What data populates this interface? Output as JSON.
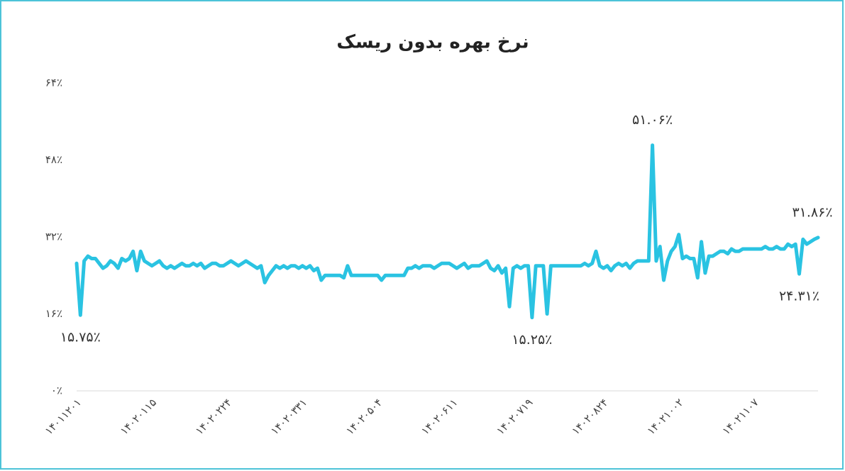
{
  "chart_data": {
    "type": "line",
    "title": "نرخ بهره بدون ریسک",
    "categories": [
      "۱۴۰۱۱۲۰۱",
      null,
      null,
      null,
      null,
      null,
      null,
      null,
      null,
      null,
      null,
      null,
      null,
      null,
      null,
      null,
      null,
      null,
      null,
      null,
      "۱۴۰۲۰۱۱۵",
      null,
      null,
      null,
      null,
      null,
      null,
      null,
      null,
      null,
      null,
      null,
      null,
      null,
      null,
      null,
      null,
      null,
      null,
      null,
      "۱۴۰۲۰۲۲۴",
      null,
      null,
      null,
      null,
      null,
      null,
      null,
      null,
      null,
      null,
      null,
      null,
      null,
      null,
      null,
      null,
      null,
      null,
      null,
      "۱۴۰۲۰۳۳۱",
      null,
      null,
      null,
      null,
      null,
      null,
      null,
      null,
      null,
      null,
      null,
      null,
      null,
      null,
      null,
      null,
      null,
      null,
      null,
      "۱۴۰۲۰۵۰۴",
      null,
      null,
      null,
      null,
      null,
      null,
      null,
      null,
      null,
      null,
      null,
      null,
      null,
      null,
      null,
      null,
      null,
      null,
      null,
      "۱۴۰۲۰۶۱۱",
      null,
      null,
      null,
      null,
      null,
      null,
      null,
      null,
      null,
      null,
      null,
      null,
      null,
      null,
      null,
      null,
      null,
      null,
      null,
      "۱۴۰۲۰۷۱۹",
      null,
      null,
      null,
      null,
      null,
      null,
      null,
      null,
      null,
      null,
      null,
      null,
      null,
      null,
      null,
      null,
      null,
      null,
      null,
      "۱۴۰۲۰۸۲۴",
      null,
      null,
      null,
      null,
      null,
      null,
      null,
      null,
      null,
      null,
      null,
      null,
      null,
      null,
      null,
      null,
      null,
      null,
      null,
      "۱۴۰۲۱۰۰۲",
      null,
      null,
      null,
      null,
      null,
      null,
      null,
      null,
      null,
      null,
      null,
      null,
      null,
      null,
      null,
      null,
      null,
      null,
      null,
      "۱۴۰۲۱۱۰۷",
      null,
      null,
      null,
      null,
      null,
      null,
      null,
      null,
      null,
      null,
      null,
      null,
      null,
      null,
      null,
      null,
      null
    ],
    "series": [
      {
        "name": "نرخ بهره بدون ریسک",
        "color": "#2ac3e2",
        "values": [
          26.5,
          15.75,
          27,
          28,
          27.5,
          27.5,
          26.5,
          25.5,
          26,
          27,
          26.5,
          25.5,
          27.5,
          27,
          27.5,
          29,
          25,
          29,
          27,
          26.5,
          26,
          26.5,
          27,
          26,
          25.5,
          26,
          25.5,
          26,
          26.5,
          26,
          26,
          26.5,
          26,
          26.5,
          25.5,
          26,
          26.5,
          26.5,
          26,
          26,
          26.5,
          27,
          26.5,
          26,
          26.5,
          27,
          26.5,
          26,
          25.5,
          26,
          22.5,
          24,
          25,
          26,
          25.5,
          26,
          25.5,
          26,
          26,
          25.5,
          26,
          25.5,
          26,
          25,
          25.5,
          23,
          24,
          24,
          24,
          24,
          24,
          23.5,
          26,
          24,
          24,
          24,
          24,
          24,
          24,
          24,
          24,
          23,
          24,
          24,
          24,
          24,
          24,
          24,
          25.5,
          25.5,
          26,
          25.5,
          26,
          26,
          26,
          25.5,
          26,
          26.5,
          26.5,
          26.5,
          26,
          25.5,
          26,
          26.5,
          25.5,
          26,
          26,
          26,
          26.5,
          27,
          25.5,
          25,
          26,
          24.5,
          25.5,
          17.5,
          25.5,
          26,
          25.5,
          26,
          26,
          15.25,
          26,
          26,
          26,
          16,
          26,
          26,
          26,
          26,
          26,
          26,
          26,
          26,
          26,
          26.5,
          26,
          26.5,
          29,
          26,
          25.5,
          26,
          25,
          26,
          26.5,
          26,
          26.5,
          25.5,
          26.5,
          27,
          27,
          27,
          27,
          51.06,
          27,
          30,
          23,
          27,
          29,
          30,
          32.5,
          27.5,
          28,
          27.5,
          27.5,
          23.5,
          31,
          24.5,
          28,
          28,
          28.5,
          29,
          29,
          28.5,
          29.5,
          29,
          29,
          29.5,
          29.5,
          29.5,
          29.5,
          29.5,
          29.5,
          30,
          29.5,
          29.5,
          30,
          29.5,
          29.5,
          30.5,
          30,
          30.5,
          24.31,
          31.5,
          30.5,
          31,
          31.5,
          31.86
        ],
        "value_labels": [
          null,
          "۱۵.۷۵٪",
          null,
          null,
          null,
          null,
          null,
          null,
          null,
          null,
          null,
          null,
          null,
          null,
          null,
          null,
          null,
          null,
          null,
          null,
          null,
          null,
          null,
          null,
          null,
          null,
          null,
          null,
          null,
          null,
          null,
          null,
          null,
          null,
          null,
          null,
          null,
          null,
          null,
          null,
          null,
          null,
          null,
          null,
          null,
          null,
          null,
          null,
          null,
          null,
          null,
          null,
          null,
          null,
          null,
          null,
          null,
          null,
          null,
          null,
          null,
          null,
          null,
          null,
          null,
          null,
          null,
          null,
          null,
          null,
          null,
          null,
          null,
          null,
          null,
          null,
          null,
          null,
          null,
          null,
          null,
          null,
          null,
          null,
          null,
          null,
          null,
          null,
          null,
          null,
          null,
          null,
          null,
          null,
          null,
          null,
          null,
          null,
          null,
          null,
          null,
          null,
          null,
          null,
          null,
          null,
          null,
          null,
          null,
          null,
          null,
          null,
          null,
          null,
          null,
          null,
          null,
          null,
          null,
          null,
          null,
          "۱۵.۲۵٪",
          null,
          null,
          null,
          null,
          null,
          null,
          null,
          null,
          null,
          null,
          null,
          null,
          null,
          null,
          null,
          null,
          null,
          null,
          null,
          null,
          null,
          null,
          null,
          null,
          null,
          null,
          null,
          null,
          null,
          null,
          null,
          "۵۱.۰۶٪",
          null,
          null,
          null,
          null,
          null,
          null,
          null,
          null,
          null,
          null,
          null,
          null,
          null,
          null,
          null,
          null,
          null,
          null,
          null,
          null,
          null,
          null,
          null,
          null,
          null,
          null,
          null,
          null,
          null,
          null,
          null,
          null,
          null,
          null,
          null,
          null,
          null,
          null,
          "۲۴.۳۱٪",
          null,
          null,
          null,
          null,
          "۳۱.۸۶٪"
        ]
      }
    ],
    "ylim": [
      0,
      64
    ],
    "yticks": [
      {
        "value": 0,
        "label": "۰٪"
      },
      {
        "value": 16,
        "label": "۱۶٪"
      },
      {
        "value": 32,
        "label": "۳۲٪"
      },
      {
        "value": 48,
        "label": "۴۸٪"
      },
      {
        "value": 64,
        "label": "۶۴٪"
      }
    ],
    "grid": false
  }
}
